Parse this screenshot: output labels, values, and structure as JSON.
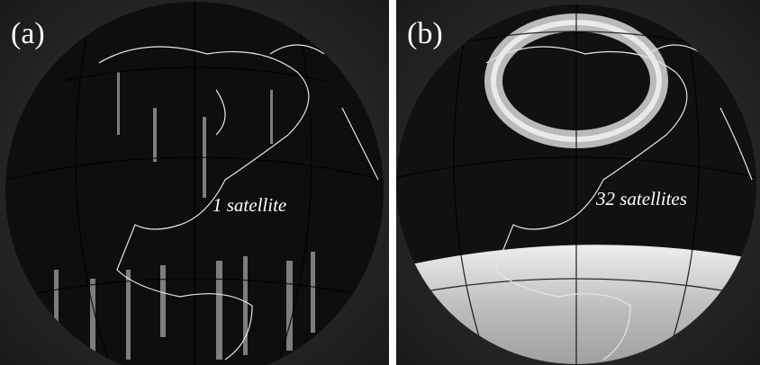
{
  "panels": [
    {
      "label": "(a)",
      "caption": "1 satellite"
    },
    {
      "label": "(b)",
      "caption": "32 satellites"
    }
  ]
}
